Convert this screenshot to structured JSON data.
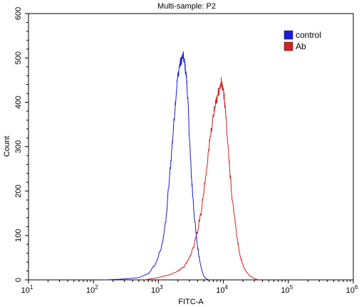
{
  "chart_data": {
    "type": "line",
    "title": "Multi-sample: P2",
    "xlabel": "FITC-A",
    "ylabel": "Count",
    "x_scale": "log",
    "xlim": [
      10,
      1000000
    ],
    "ylim": [
      0,
      600
    ],
    "x_ticks": [
      {
        "value": 10,
        "label": "10",
        "exp": "1"
      },
      {
        "value": 100,
        "label": "10",
        "exp": "2"
      },
      {
        "value": 1000,
        "label": "10",
        "exp": "3"
      },
      {
        "value": 10000,
        "label": "10",
        "exp": "4"
      },
      {
        "value": 100000,
        "label": "10",
        "exp": "5"
      },
      {
        "value": 1000000,
        "label": "10",
        "exp": "6"
      }
    ],
    "y_ticks": [
      0,
      100,
      200,
      300,
      400,
      500,
      600
    ],
    "grid": false,
    "legend_position": "top-right",
    "series": [
      {
        "name": "control",
        "color": "#1a1adb",
        "x": [
          150,
          300,
          500,
          700,
          900,
          1100,
          1300,
          1500,
          1650,
          1800,
          1950,
          2100,
          2250,
          2400,
          2550,
          2700,
          2850,
          3000,
          3200,
          3500,
          3800,
          4200,
          4600,
          5000,
          5500,
          6000
        ],
        "y": [
          0,
          2,
          5,
          14,
          35,
          70,
          130,
          240,
          315,
          390,
          450,
          480,
          495,
          505,
          485,
          455,
          400,
          320,
          240,
          160,
          100,
          55,
          25,
          8,
          2,
          0
        ]
      },
      {
        "name": "Ab",
        "color": "#d42020",
        "x": [
          600,
          1000,
          1500,
          2000,
          2500,
          3000,
          3500,
          4000,
          4600,
          5200,
          5800,
          6400,
          7000,
          7600,
          8200,
          8800,
          9300,
          9800,
          10300,
          10800,
          11500,
          12500,
          14000,
          16000,
          18000,
          21000,
          25000,
          30000,
          35000
        ],
        "y": [
          0,
          5,
          12,
          20,
          30,
          50,
          75,
          110,
          160,
          220,
          280,
          330,
          370,
          395,
          420,
          430,
          445,
          430,
          410,
          380,
          320,
          250,
          170,
          100,
          55,
          25,
          10,
          3,
          0
        ]
      }
    ]
  }
}
